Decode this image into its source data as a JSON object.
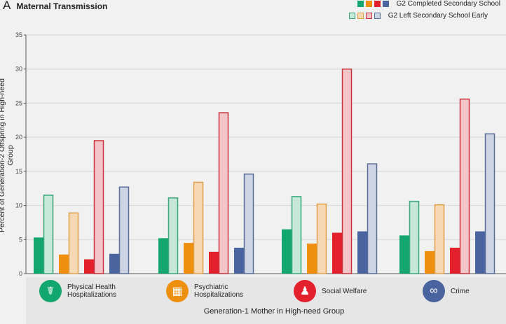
{
  "panel_letter": "A",
  "title": "Maternal Transmission",
  "chart_data": {
    "type": "bar",
    "title": "Maternal Transmission",
    "xlabel": "Generation-1 Mother in High-need Group",
    "ylabel": "Percent of Generation-2 Offspring in High-need Group",
    "ylim": [
      0,
      35
    ],
    "yticks": [
      0,
      5,
      10,
      15,
      20,
      25,
      30,
      35
    ],
    "grid": true,
    "legend_placement": "top-right",
    "legend": [
      "G2 Completed Secondary School",
      "G2 Left Secondary School Early"
    ],
    "categories": [
      {
        "label1": "Physical Health",
        "label2": "Hospitalizations",
        "icon": "body-organs-icon",
        "color": "#13a66f"
      },
      {
        "label1": "Psychiatric",
        "label2": "Hospitalizations",
        "icon": "hospital-building-icon",
        "color": "#ef8f0e"
      },
      {
        "label1": "Social Welfare",
        "label2": "",
        "icon": "family-hand-icon",
        "color": "#e3212d"
      },
      {
        "label1": "Crime",
        "label2": "",
        "icon": "handcuffs-icon",
        "color": "#4a64a0"
      }
    ],
    "series": [
      {
        "name": "G2 Completed Secondary School",
        "values": [
          [
            5.3,
            2.8,
            2.1,
            2.9
          ],
          [
            5.2,
            4.5,
            3.2,
            3.8
          ],
          [
            6.5,
            4.4,
            6.0,
            6.2
          ],
          [
            5.6,
            3.3,
            3.8,
            6.2
          ]
        ]
      },
      {
        "name": "G2 Left Secondary School Early",
        "values": [
          [
            11.5,
            8.9,
            19.5,
            12.7
          ],
          [
            11.1,
            13.4,
            23.6,
            14.6
          ],
          [
            11.3,
            10.2,
            30.0,
            16.1
          ],
          [
            10.6,
            10.1,
            25.6,
            20.5
          ]
        ]
      }
    ],
    "bar_colors": {
      "solid": [
        "#13a66f",
        "#ef8f0e",
        "#e3212d",
        "#4a64a0"
      ],
      "light_fill": [
        "#c6e7d9",
        "#f4d9b4",
        "#f3c5c9",
        "#cdd4e3"
      ],
      "light_stroke": [
        "#3aa77a",
        "#e0a04a",
        "#c6343d",
        "#5a6c98"
      ]
    }
  }
}
